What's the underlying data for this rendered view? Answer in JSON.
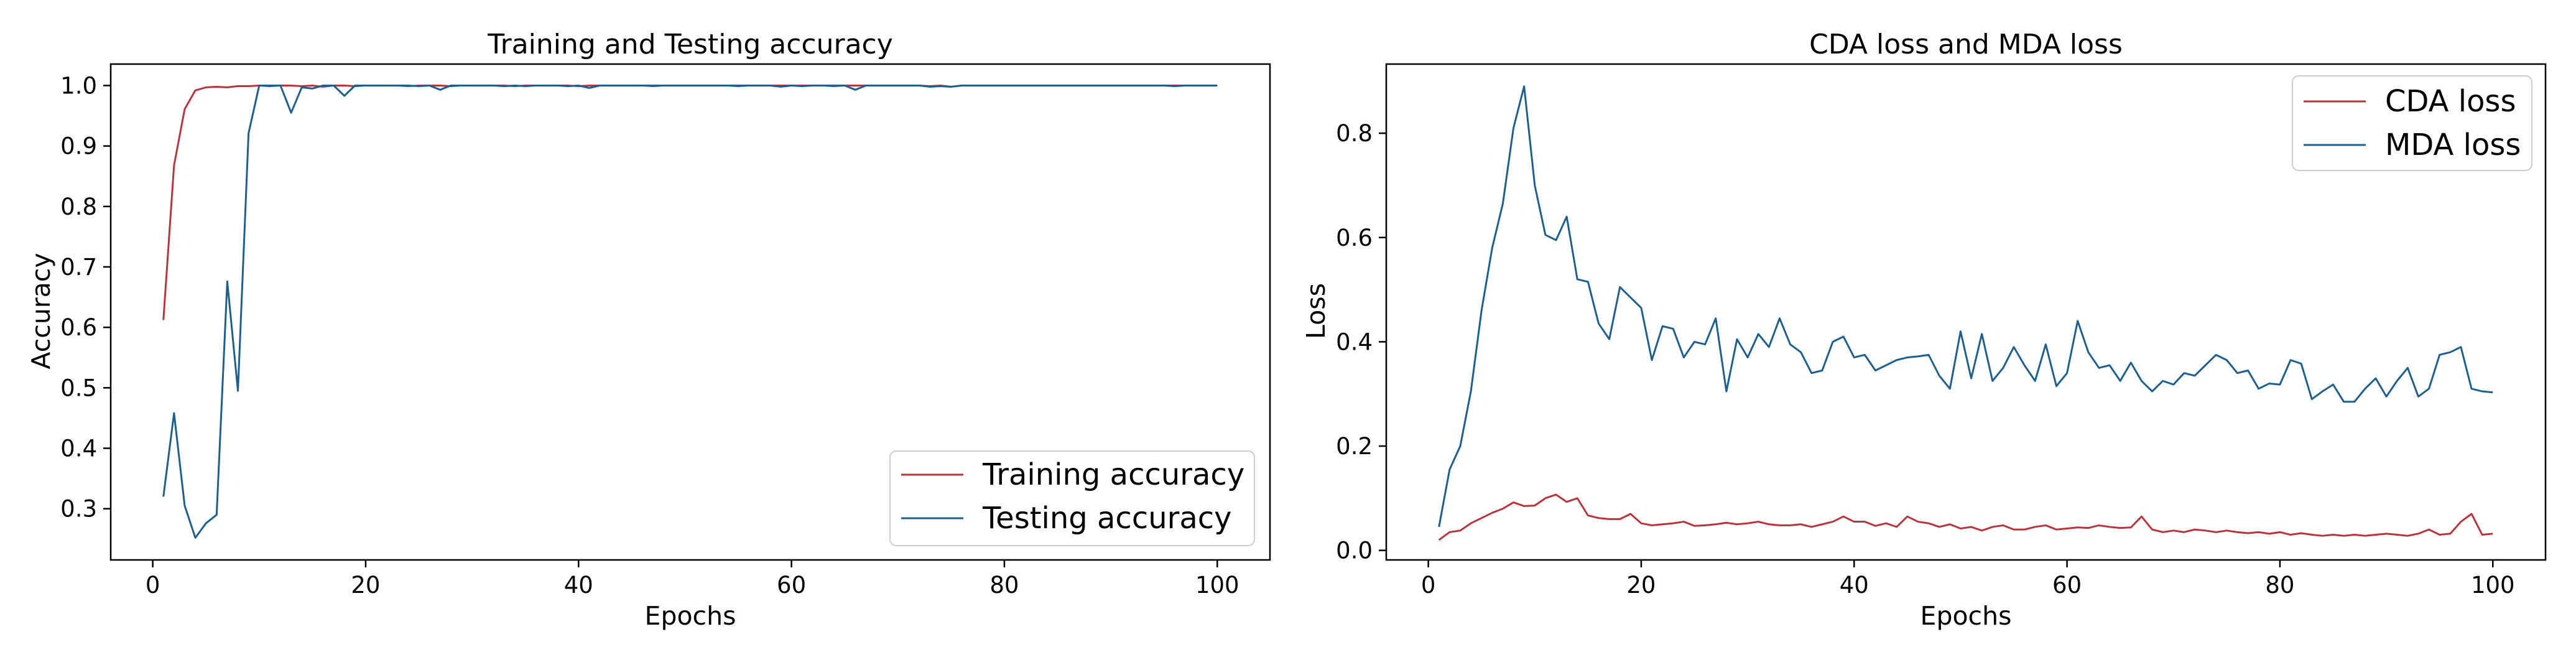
{
  "colors": {
    "training": "#b5363e",
    "testing": "#1f5f8b",
    "axes": "#000000",
    "background": "#ffffff"
  },
  "chart_data": [
    {
      "type": "line",
      "title": "Training and Testing accuracy",
      "xlabel": "Epochs",
      "ylabel": "Accuracy",
      "xlim": [
        -3.95,
        104.95
      ],
      "ylim": [
        0.2153,
        1.0355
      ],
      "xticks": [
        0,
        20,
        40,
        60,
        80,
        100
      ],
      "yticks": [
        0.3,
        0.4,
        0.5,
        0.6,
        0.7,
        0.8,
        0.9,
        1.0
      ],
      "ytick_labels": [
        "0.3",
        "0.4",
        "0.5",
        "0.6",
        "0.7",
        "0.8",
        "0.9",
        "1.0"
      ],
      "legend_position": "lower-right",
      "grid": false,
      "series": [
        {
          "name": "Training accuracy",
          "color": "#b5363e",
          "x_start": 1,
          "values": [
            0.612,
            0.868,
            0.961,
            0.992,
            0.997,
            0.998,
            0.997,
            0.999,
            0.999,
            1.0,
            0.999,
            1.0,
            1.0,
            0.999,
            1.0,
            0.998,
            1.0,
            1.0,
            0.999,
            1.0,
            1.0,
            1.0,
            1.0,
            0.999,
            1.0,
            1.0,
            1.0,
            0.999,
            1.0,
            1.0,
            1.0,
            1.0,
            1.0,
            0.999,
            1.0,
            1.0,
            1.0,
            1.0,
            1.0,
            0.999,
            1.0,
            1.0,
            1.0,
            1.0,
            1.0,
            1.0,
            0.999,
            1.0,
            1.0,
            1.0,
            1.0,
            1.0,
            1.0,
            1.0,
            0.999,
            1.0,
            1.0,
            1.0,
            1.0,
            1.0,
            1.0,
            1.0,
            1.0,
            0.999,
            1.0,
            1.0,
            1.0,
            1.0,
            1.0,
            1.0,
            1.0,
            1.0,
            0.999,
            1.0,
            0.998,
            1.0,
            1.0,
            1.0,
            1.0,
            1.0,
            1.0,
            1.0,
            1.0,
            1.0,
            1.0,
            1.0,
            1.0,
            1.0,
            1.0,
            1.0,
            1.0,
            1.0,
            1.0,
            1.0,
            1.0,
            1.0,
            1.0,
            1.0,
            1.0,
            1.0
          ]
        },
        {
          "name": "Testing accuracy",
          "color": "#1f5f8b",
          "x_start": 1,
          "values": [
            0.32,
            0.458,
            0.305,
            0.252,
            0.276,
            0.29,
            0.676,
            0.495,
            0.921,
            1.0,
            1.0,
            1.0,
            0.955,
            0.997,
            0.995,
            1.0,
            1.0,
            0.983,
            1.0,
            1.0,
            1.0,
            1.0,
            1.0,
            1.0,
            0.999,
            1.0,
            0.993,
            1.0,
            1.0,
            1.0,
            1.0,
            1.0,
            0.999,
            1.0,
            0.999,
            1.0,
            1.0,
            1.0,
            0.999,
            1.0,
            0.996,
            1.0,
            1.0,
            1.0,
            1.0,
            1.0,
            1.0,
            1.0,
            1.0,
            1.0,
            1.0,
            1.0,
            1.0,
            1.0,
            1.0,
            1.0,
            1.0,
            1.0,
            0.998,
            1.0,
            0.999,
            1.0,
            1.0,
            1.0,
            1.0,
            0.993,
            1.0,
            1.0,
            1.0,
            1.0,
            1.0,
            1.0,
            0.998,
            0.999,
            0.998,
            1.0,
            1.0,
            1.0,
            1.0,
            1.0,
            1.0,
            1.0,
            1.0,
            1.0,
            1.0,
            1.0,
            1.0,
            1.0,
            1.0,
            1.0,
            1.0,
            1.0,
            1.0,
            1.0,
            1.0,
            0.999,
            1.0,
            1.0,
            1.0,
            1.0
          ]
        }
      ]
    },
    {
      "type": "line",
      "title": "CDA loss and MDA loss",
      "xlabel": "Epochs",
      "ylabel": "Loss",
      "xlim": [
        -3.95,
        104.95
      ],
      "ylim": [
        -0.0183,
        0.9326
      ],
      "xticks": [
        0,
        20,
        40,
        60,
        80,
        100
      ],
      "yticks": [
        0.0,
        0.2,
        0.4,
        0.6,
        0.8
      ],
      "ytick_labels": [
        "0.0",
        "0.2",
        "0.4",
        "0.6",
        "0.8"
      ],
      "legend_position": "upper-right",
      "grid": false,
      "series": [
        {
          "name": "CDA loss",
          "color": "#b5363e",
          "x_start": 1,
          "values": [
            0.02,
            0.035,
            0.038,
            0.052,
            0.062,
            0.072,
            0.08,
            0.092,
            0.085,
            0.086,
            0.1,
            0.107,
            0.093,
            0.1,
            0.067,
            0.062,
            0.06,
            0.06,
            0.07,
            0.052,
            0.048,
            0.05,
            0.052,
            0.055,
            0.047,
            0.048,
            0.05,
            0.053,
            0.05,
            0.052,
            0.055,
            0.05,
            0.048,
            0.048,
            0.05,
            0.045,
            0.05,
            0.055,
            0.065,
            0.055,
            0.055,
            0.047,
            0.052,
            0.045,
            0.065,
            0.055,
            0.052,
            0.045,
            0.05,
            0.042,
            0.045,
            0.038,
            0.045,
            0.048,
            0.04,
            0.04,
            0.045,
            0.048,
            0.04,
            0.042,
            0.044,
            0.043,
            0.048,
            0.045,
            0.043,
            0.044,
            0.065,
            0.04,
            0.035,
            0.038,
            0.035,
            0.04,
            0.038,
            0.035,
            0.038,
            0.035,
            0.033,
            0.035,
            0.032,
            0.035,
            0.03,
            0.033,
            0.03,
            0.028,
            0.03,
            0.028,
            0.03,
            0.028,
            0.03,
            0.032,
            0.03,
            0.028,
            0.032,
            0.04,
            0.03,
            0.032,
            0.055,
            0.07,
            0.03,
            0.032
          ]
        },
        {
          "name": "MDA loss",
          "color": "#1f5f8b",
          "x_start": 1,
          "values": [
            0.045,
            0.155,
            0.2,
            0.305,
            0.46,
            0.58,
            0.665,
            0.81,
            0.89,
            0.7,
            0.605,
            0.595,
            0.64,
            0.52,
            0.515,
            0.435,
            0.405,
            0.505,
            0.485,
            0.465,
            0.365,
            0.43,
            0.425,
            0.37,
            0.4,
            0.395,
            0.445,
            0.305,
            0.405,
            0.37,
            0.415,
            0.39,
            0.445,
            0.395,
            0.38,
            0.34,
            0.345,
            0.4,
            0.41,
            0.37,
            0.375,
            0.345,
            0.355,
            0.365,
            0.37,
            0.372,
            0.375,
            0.335,
            0.31,
            0.42,
            0.33,
            0.415,
            0.325,
            0.35,
            0.39,
            0.355,
            0.325,
            0.395,
            0.315,
            0.34,
            0.44,
            0.38,
            0.35,
            0.355,
            0.325,
            0.36,
            0.325,
            0.305,
            0.325,
            0.318,
            0.34,
            0.335,
            0.355,
            0.375,
            0.365,
            0.34,
            0.345,
            0.31,
            0.32,
            0.318,
            0.365,
            0.358,
            0.29,
            0.305,
            0.318,
            0.285,
            0.285,
            0.31,
            0.33,
            0.295,
            0.325,
            0.35,
            0.295,
            0.31,
            0.375,
            0.38,
            0.39,
            0.31,
            0.305,
            0.303
          ]
        }
      ]
    }
  ]
}
